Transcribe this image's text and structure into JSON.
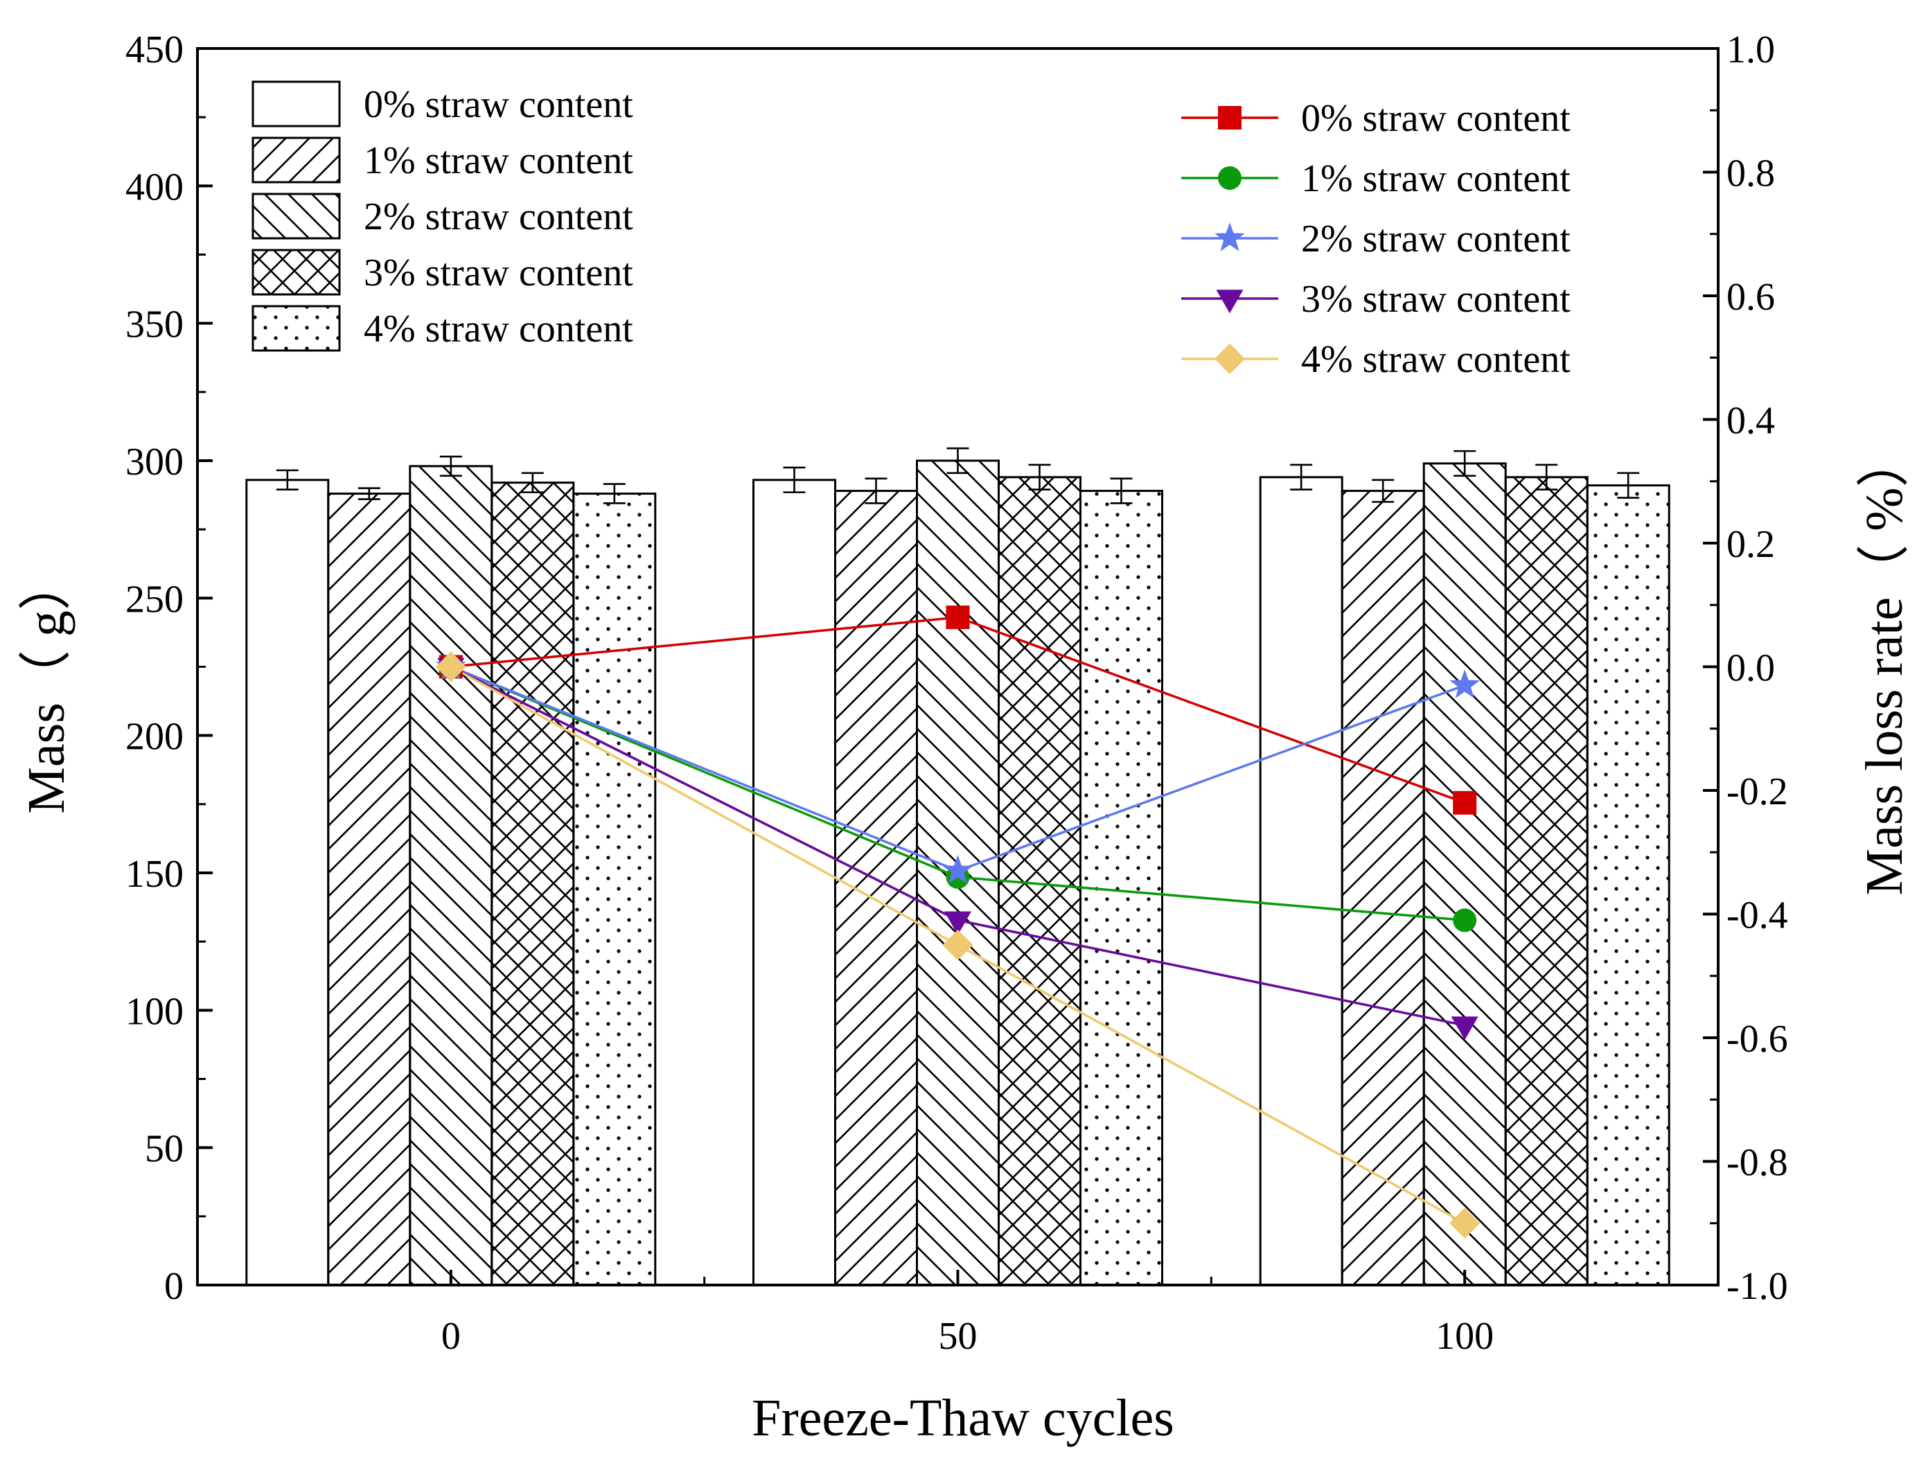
{
  "chart_data": {
    "type": "bar",
    "xlabel": "Freeze-Thaw cycles",
    "ylabel": "Mass（ g）",
    "y2label": "Mass loss rate（ %）",
    "x_ticks": [
      0,
      50,
      100
    ],
    "x_tick_labels": [
      "0",
      "50",
      "100"
    ],
    "xlim": [
      -25,
      125
    ],
    "ylim": [
      0,
      450
    ],
    "y_ticks": [
      0,
      50,
      100,
      150,
      200,
      250,
      300,
      350,
      400,
      450
    ],
    "y_tick_labels": [
      "0",
      "50",
      "100",
      "150",
      "200",
      "250",
      "300",
      "350",
      "400",
      "450"
    ],
    "y2lim": [
      -1.0,
      1.0
    ],
    "y2_ticks": [
      -1.0,
      -0.8,
      -0.6,
      -0.4,
      -0.2,
      0.0,
      0.2,
      0.4,
      0.6,
      0.8,
      1.0
    ],
    "y2_tick_labels": [
      "-1.0",
      "-0.8",
      "-0.6",
      "-0.4",
      "-0.2",
      "0.0",
      "0.2",
      "0.4",
      "0.6",
      "0.8",
      "1.0"
    ],
    "bar_series": [
      {
        "name": "0% straw content",
        "pattern": "plain",
        "values": [
          293,
          293,
          294
        ],
        "errors": [
          3.5,
          4.5,
          4.5
        ]
      },
      {
        "name": "1% straw content",
        "pattern": "forward-hatch",
        "values": [
          288,
          289,
          289
        ],
        "errors": [
          2.0,
          4.5,
          4.0
        ]
      },
      {
        "name": "2% straw content",
        "pattern": "back-hatch",
        "values": [
          298,
          300,
          299
        ],
        "errors": [
          3.5,
          4.5,
          4.5
        ]
      },
      {
        "name": "3% straw content",
        "pattern": "cross-hatch",
        "values": [
          292,
          294,
          294
        ],
        "errors": [
          3.5,
          4.5,
          4.5
        ]
      },
      {
        "name": "4% straw content",
        "pattern": "dots",
        "values": [
          288,
          289,
          291
        ],
        "errors": [
          3.5,
          4.5,
          4.5
        ]
      }
    ],
    "line_series": [
      {
        "name": "0% straw content",
        "color": "#d40000",
        "marker": "square",
        "x": [
          0,
          50,
          100
        ],
        "values": [
          0.0,
          0.08,
          -0.22
        ]
      },
      {
        "name": "1% straw content",
        "color": "#0a9a0a",
        "marker": "circle",
        "x": [
          0,
          50,
          100
        ],
        "values": [
          0.0,
          -0.34,
          -0.41
        ]
      },
      {
        "name": "2% straw content",
        "color": "#5f78f0",
        "marker": "star",
        "x": [
          0,
          50,
          100
        ],
        "values": [
          0.0,
          -0.33,
          -0.03
        ]
      },
      {
        "name": "3% straw content",
        "color": "#6a0a9c",
        "marker": "triangle-down",
        "x": [
          0,
          50,
          100
        ],
        "values": [
          0.0,
          -0.41,
          -0.58
        ]
      },
      {
        "name": "4% straw content",
        "color": "#f0c870",
        "marker": "diamond",
        "x": [
          0,
          50,
          100
        ],
        "values": [
          0.0,
          -0.45,
          -0.9
        ]
      }
    ]
  }
}
